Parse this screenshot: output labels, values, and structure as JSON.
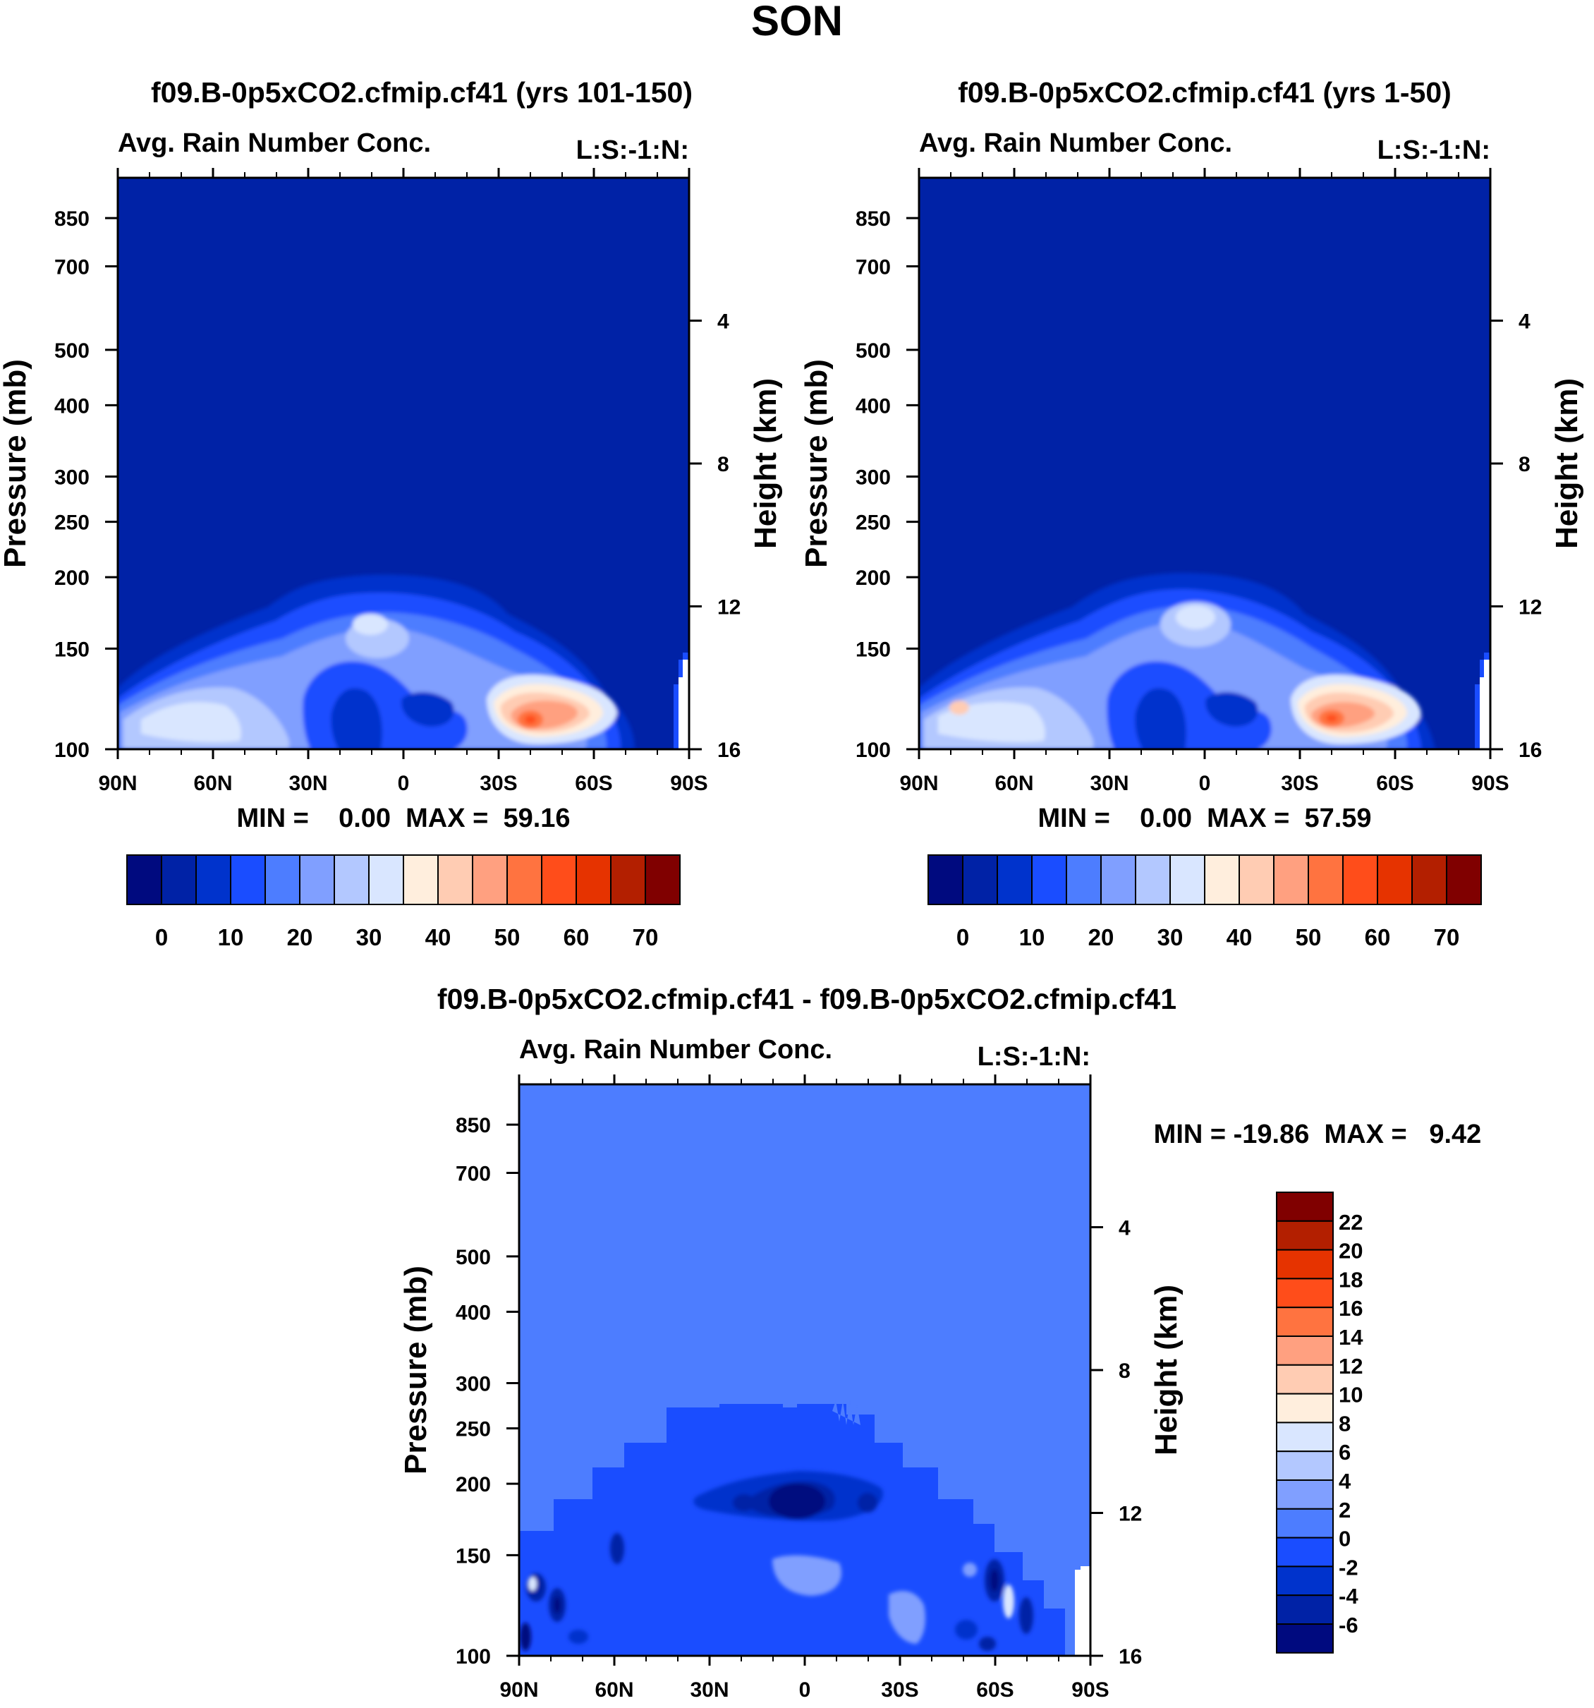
{
  "figure_title": "SON",
  "colors": {
    "abs_fill": [
      "#000a7f",
      "#0022a6",
      "#0033cc",
      "#1a4dff",
      "#4d7dff",
      "#809fff",
      "#b3c8ff",
      "#d9e6ff",
      "#ffeedd",
      "#ffccb3",
      "#ffa080",
      "#ff7340",
      "#ff4d1a",
      "#e63300",
      "#b31f00",
      "#800000"
    ],
    "diff_fill": [
      "#000a7f",
      "#0022a6",
      "#0033cc",
      "#1a4dff",
      "#4d7dff",
      "#809fff",
      "#b3c8ff",
      "#d9e6ff",
      "#ffeedd",
      "#ffccb3",
      "#ffa080",
      "#ff7340",
      "#ff4d1a",
      "#e63300",
      "#b31f00",
      "#800000"
    ]
  },
  "chart_data": [
    {
      "id": "panel-left",
      "type": "heatmap",
      "title": "f09.B-0p5xCO2.cfmip.cf41 (yrs 101-150)",
      "subtitle_left": "Avg. Rain Number Conc.",
      "subtitle_right": "L:S:-1:N:",
      "ylabel": "Pressure (mb)",
      "ylabel_right": "Height (km)",
      "x_ticks": [
        "90N",
        "60N",
        "30N",
        "0",
        "30S",
        "60S",
        "90S"
      ],
      "y_ticks": [
        "100",
        "150",
        "200",
        "250",
        "300",
        "400",
        "500",
        "700",
        "850"
      ],
      "y_ticks_right": [
        "16",
        "12",
        "8",
        "4"
      ],
      "stats": "MIN =    0.00  MAX =  59.16",
      "min": 0.0,
      "max": 59.16,
      "colorbar_labels": [
        "0",
        "10",
        "20",
        "30",
        "40",
        "50",
        "60",
        "70"
      ],
      "colorbar_levels": [
        0,
        5,
        10,
        15,
        20,
        25,
        30,
        35,
        40,
        45,
        50,
        55,
        60,
        65,
        70
      ]
    },
    {
      "id": "panel-right",
      "type": "heatmap",
      "title": "f09.B-0p5xCO2.cfmip.cf41 (yrs 1-50)",
      "subtitle_left": "Avg. Rain Number Conc.",
      "subtitle_right": "L:S:-1:N:",
      "ylabel": "Pressure (mb)",
      "ylabel_right": "Height (km)",
      "x_ticks": [
        "90N",
        "60N",
        "30N",
        "0",
        "30S",
        "60S",
        "90S"
      ],
      "y_ticks": [
        "100",
        "150",
        "200",
        "250",
        "300",
        "400",
        "500",
        "700",
        "850"
      ],
      "y_ticks_right": [
        "16",
        "12",
        "8",
        "4"
      ],
      "stats": "MIN =    0.00  MAX =  57.59",
      "min": 0.0,
      "max": 57.59,
      "colorbar_labels": [
        "0",
        "10",
        "20",
        "30",
        "40",
        "50",
        "60",
        "70"
      ],
      "colorbar_levels": [
        0,
        5,
        10,
        15,
        20,
        25,
        30,
        35,
        40,
        45,
        50,
        55,
        60,
        65,
        70
      ]
    },
    {
      "id": "panel-diff",
      "type": "heatmap",
      "title": "f09.B-0p5xCO2.cfmip.cf41 - f09.B-0p5xCO2.cfmip.cf41",
      "subtitle_left": "Avg. Rain Number Conc.",
      "subtitle_right": "L:S:-1:N:",
      "ylabel": "Pressure (mb)",
      "ylabel_right": "Height (km)",
      "x_ticks": [
        "90N",
        "60N",
        "30N",
        "0",
        "30S",
        "60S",
        "90S"
      ],
      "y_ticks": [
        "100",
        "150",
        "200",
        "250",
        "300",
        "400",
        "500",
        "700",
        "850"
      ],
      "y_ticks_right": [
        "16",
        "12",
        "8",
        "4"
      ],
      "stats": "MIN = -19.86  MAX =   9.42",
      "min": -19.86,
      "max": 9.42,
      "colorbar_labels": [
        "22",
        "20",
        "18",
        "16",
        "14",
        "12",
        "10",
        "8",
        "6",
        "4",
        "2",
        "0",
        "-2",
        "-4",
        "-6"
      ]
    }
  ]
}
